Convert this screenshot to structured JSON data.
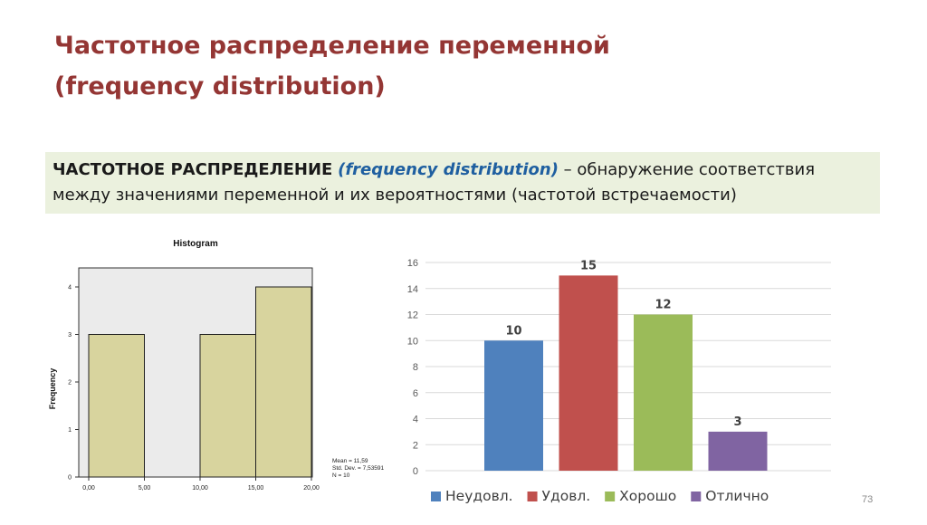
{
  "slide": {
    "title_line1": "Частотное распределение переменной",
    "title_line2": "(frequency distribution)",
    "definition": {
      "term": "ЧАСТОТНОЕ РАСПРЕДЕЛЕНИЕ",
      "term_en": "(frequency distribution)",
      "rest": "– обнаружение соответствия между значениями переменной и их вероятностями (частотой встречаемости)"
    },
    "page_number": "73"
  },
  "chart_data": [
    {
      "type": "bar",
      "title": "Histogram",
      "xlabel": "",
      "ylabel": "Frequency",
      "bins": [
        [
          0,
          5
        ],
        [
          5,
          10
        ],
        [
          10,
          15
        ],
        [
          15,
          20
        ]
      ],
      "values": [
        3,
        0,
        3,
        4
      ],
      "xticks": [
        "0,00",
        "5,00",
        "10,00",
        "15,00",
        "20,00"
      ],
      "yticks": [
        0,
        1,
        2,
        3,
        4
      ],
      "ylim": [
        0,
        4.4
      ],
      "stats": [
        "Mean = 11,59",
        "Std. Dev. = 7,53591",
        "N = 10"
      ],
      "colors": {
        "bar": "#d8d49e",
        "plot_bg": "#ebebeb"
      },
      "grid": false
    },
    {
      "type": "bar",
      "title": "",
      "categories": [
        "Неудовл.",
        "Удовл.",
        "Хорошо",
        "Отлично"
      ],
      "values": [
        10,
        15,
        12,
        3
      ],
      "colors": [
        "#4f81bd",
        "#c0504d",
        "#9bbb59",
        "#8064a2"
      ],
      "ylim": [
        0,
        16
      ],
      "yticks": [
        0,
        2,
        4,
        6,
        8,
        10,
        12,
        14,
        16
      ],
      "legend": "bottom",
      "grid": true
    }
  ]
}
